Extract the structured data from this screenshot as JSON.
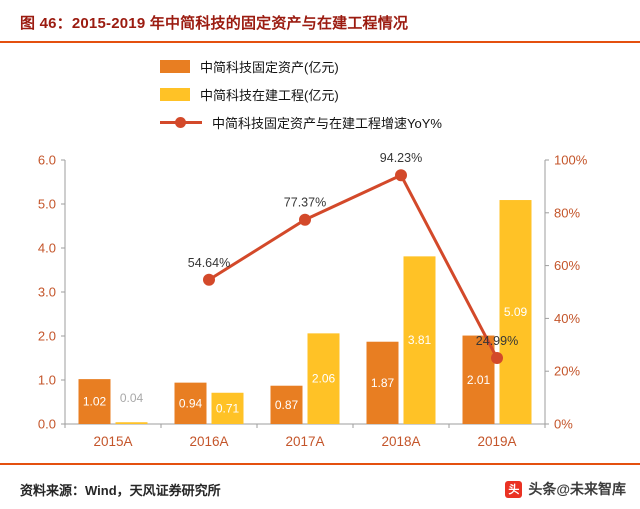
{
  "header": {
    "title": "图 46：2015-2019 年中简科技的固定资产与在建工程情况"
  },
  "chart_data": {
    "type": "bar",
    "categories": [
      "2015A",
      "2016A",
      "2017A",
      "2018A",
      "2019A"
    ],
    "series": [
      {
        "name": "中简科技固定资产(亿元)",
        "type": "bar",
        "axis": "left",
        "values": [
          1.02,
          0.94,
          0.87,
          1.87,
          2.01
        ]
      },
      {
        "name": "中简科技在建工程(亿元)",
        "type": "bar",
        "axis": "left",
        "values": [
          0.04,
          0.71,
          2.06,
          3.81,
          5.09
        ]
      },
      {
        "name": "中简科技固定资产与在建工程增速YoY%",
        "type": "line",
        "axis": "right",
        "values": [
          null,
          54.64,
          77.37,
          94.23,
          24.99
        ]
      }
    ],
    "left_axis": {
      "min": 0,
      "max": 6,
      "ticks": [
        "0.0",
        "1.0",
        "2.0",
        "3.0",
        "4.0",
        "5.0",
        "6.0"
      ]
    },
    "right_axis": {
      "min": 0,
      "max": 100,
      "ticks": [
        "0%",
        "20%",
        "40%",
        "60%",
        "80%",
        "100%"
      ]
    },
    "grid": false,
    "legend_position": "top-left"
  },
  "footer": {
    "source": "资料来源：Wind，天风证券研究所",
    "watermark": "头条@未来智库",
    "watermark_logo_glyph": "头"
  },
  "colors": {
    "title_text": "#9B1B10",
    "rule": "#E4500F",
    "fixed_assets_bar": "#E87E22",
    "construction_bar": "#FFC226",
    "yoy_line": "#D3492A",
    "axis_label": "#C4552A",
    "bar_label": "#FFFFFF",
    "small_bar_label": "#A8A8A8",
    "line_label": "#363636",
    "axis_line": "#9E9E9E",
    "watermark_logo": "#EA3223"
  }
}
